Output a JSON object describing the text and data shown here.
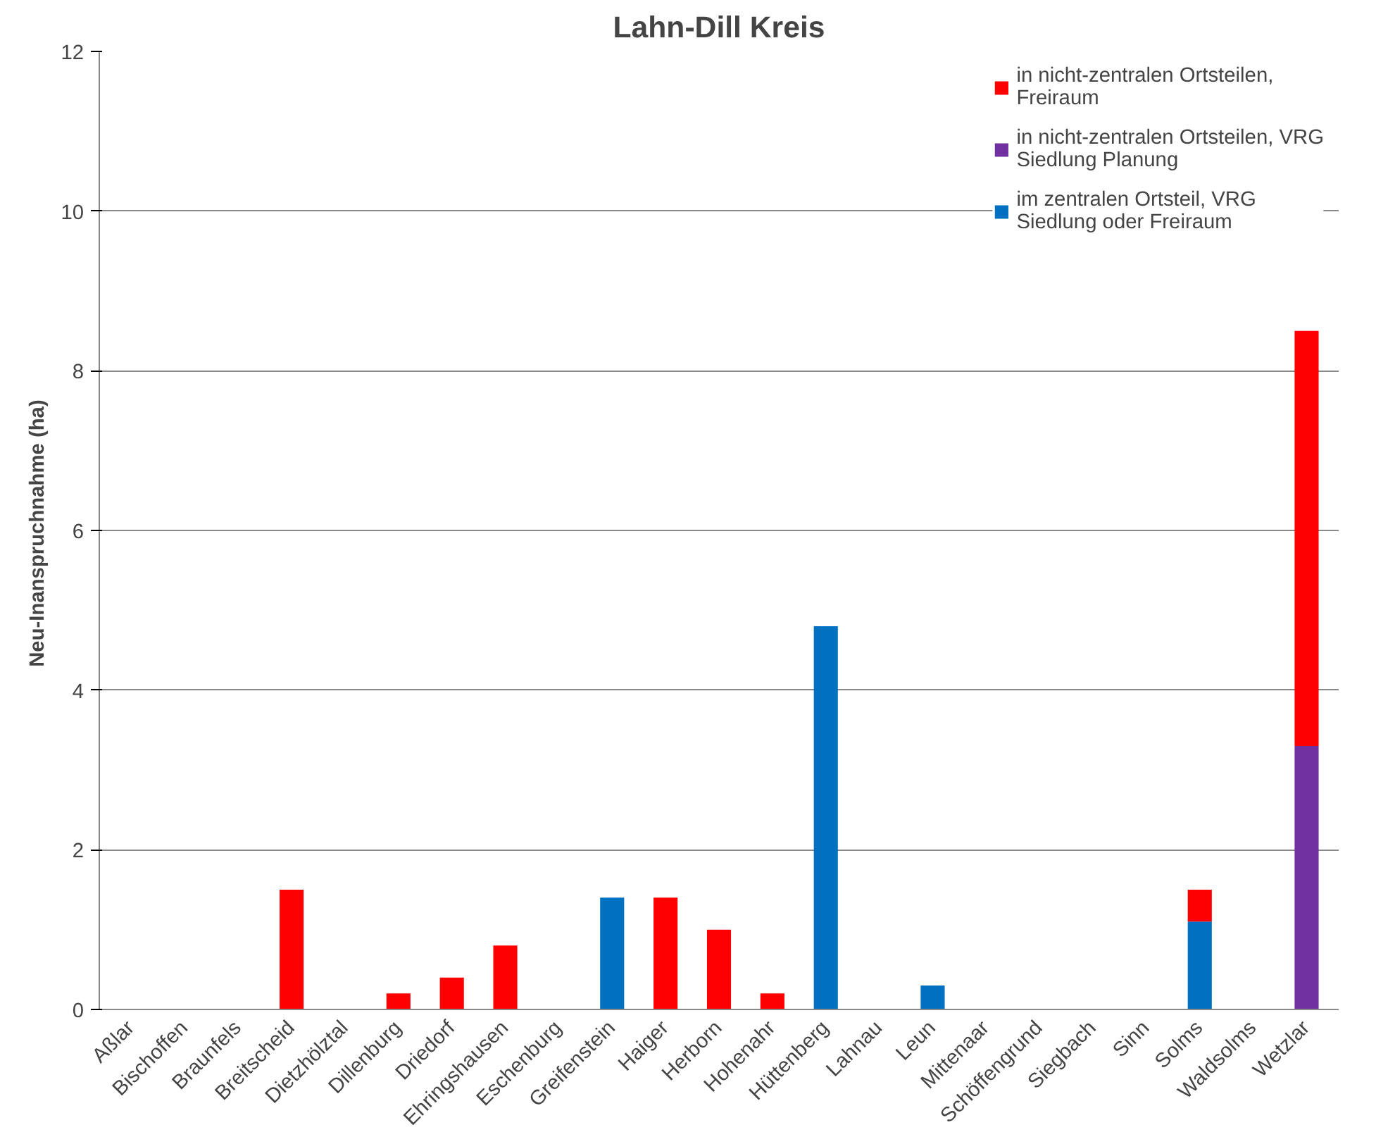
{
  "chart_data": {
    "type": "bar",
    "title": "Lahn-Dill Kreis",
    "ylabel": "Neu-Inanspruchnahme  (ha)",
    "categories": [
      "Aßlar",
      "Bischoffen",
      "Braunfels",
      "Breitscheid",
      "Dietzhölztal",
      "Dillenburg",
      "Driedorf",
      "Ehringshausen",
      "Eschenburg",
      "Greifenstein",
      "Haiger",
      "Herborn",
      "Hohenahr",
      "Hüttenberg",
      "Lahnau",
      "Leun",
      "Mittenaar",
      "Schöffengrund",
      "Siegbach",
      "Sinn",
      "Solms",
      "Waldsolms",
      "Wetzlar"
    ],
    "stacked": true,
    "ylim": [
      0,
      12
    ],
    "yticks": [
      0,
      2,
      4,
      6,
      8,
      10,
      12
    ],
    "grid": "y",
    "legend": "top right",
    "series": [
      {
        "name": "im zentralen Ortsteil, VRG Siedlung oder Freiraum",
        "color": "#0070c0",
        "values": [
          null,
          null,
          null,
          null,
          null,
          null,
          null,
          null,
          null,
          1.4,
          null,
          null,
          null,
          4.8,
          null,
          0.3,
          null,
          null,
          null,
          null,
          1.1,
          null,
          null
        ]
      },
      {
        "name": "in nicht-zentralen Ortsteilen, VRG Siedlung Planung",
        "color": "#7030a0",
        "values": [
          null,
          null,
          null,
          null,
          null,
          null,
          null,
          null,
          null,
          null,
          null,
          null,
          null,
          null,
          null,
          null,
          null,
          null,
          null,
          null,
          null,
          null,
          3.3
        ]
      },
      {
        "name": "in nicht-zentralen Ortsteilen, Freiraum",
        "color": "#ff0000",
        "values": [
          null,
          null,
          null,
          1.5,
          null,
          0.2,
          0.4,
          0.8,
          null,
          null,
          1.4,
          1.0,
          0.2,
          null,
          null,
          null,
          null,
          null,
          null,
          null,
          0.4,
          null,
          5.2
        ]
      }
    ]
  }
}
